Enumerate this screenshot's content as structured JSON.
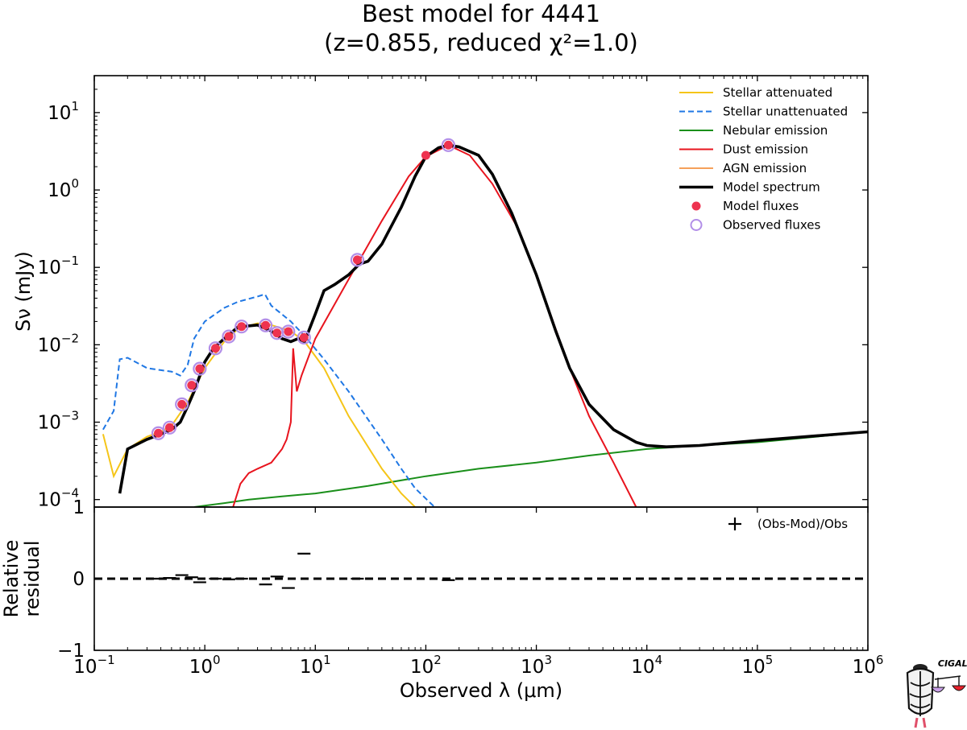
{
  "chart_data": [
    {
      "panel": "sed",
      "type": "line",
      "title": "Best model for 4441",
      "subtitle": "(z=0.855, reduced χ²=1.0)",
      "xlabel": "Observed λ (μm)",
      "ylabel": "Sν (mJy)",
      "xscale": "log",
      "yscale": "log",
      "xlim": [
        0.1,
        1000000
      ],
      "ylim": [
        8e-05,
        30
      ],
      "x_ticks": [
        0.1,
        1,
        10,
        100,
        1000,
        10000,
        100000,
        1000000
      ],
      "x_tick_labels": [
        {
          "base": "10",
          "exp": "−1"
        },
        {
          "base": "10",
          "exp": "0"
        },
        {
          "base": "10",
          "exp": "1"
        },
        {
          "base": "10",
          "exp": "2"
        },
        {
          "base": "10",
          "exp": "3"
        },
        {
          "base": "10",
          "exp": "4"
        },
        {
          "base": "10",
          "exp": "5"
        },
        {
          "base": "10",
          "exp": "6"
        }
      ],
      "y_ticks": [
        0.0001,
        0.001,
        0.01,
        0.1,
        1,
        10
      ],
      "y_tick_labels": [
        {
          "base": "10",
          "exp": "−4"
        },
        {
          "base": "10",
          "exp": "−3"
        },
        {
          "base": "10",
          "exp": "−2"
        },
        {
          "base": "10",
          "exp": "−1"
        },
        {
          "base": "10",
          "exp": "0"
        },
        {
          "base": "10",
          "exp": "1"
        }
      ],
      "legend_position": "top-right",
      "legend": [
        {
          "label": "Stellar attenuated",
          "color": "#f5c518",
          "style": "line"
        },
        {
          "label": "Stellar unattenuated",
          "color": "#1f77e4",
          "style": "dashed"
        },
        {
          "label": "Nebular emission",
          "color": "#1a8f1a",
          "style": "line"
        },
        {
          "label": "Dust emission",
          "color": "#e8141e",
          "style": "line"
        },
        {
          "label": "AGN emission",
          "color": "#f5a05a",
          "style": "line"
        },
        {
          "label": "Model spectrum",
          "color": "#000000",
          "style": "thick"
        },
        {
          "label": "Model fluxes",
          "color": "#ee3350",
          "style": "dot"
        },
        {
          "label": "Observed fluxes",
          "color": "#b28ee8",
          "style": "circle"
        }
      ],
      "series": [
        {
          "name": "Stellar attenuated",
          "color": "#f5c518",
          "x": [
            0.12,
            0.15,
            0.2,
            0.3,
            0.4,
            0.5,
            0.7,
            1.0,
            1.5,
            2.0,
            3.0,
            4.0,
            6.0,
            8.0,
            12,
            20,
            40,
            60,
            80
          ],
          "y": [
            0.0007,
            0.0002,
            0.00045,
            0.00065,
            0.00075,
            0.0009,
            0.0018,
            0.005,
            0.011,
            0.016,
            0.019,
            0.018,
            0.015,
            0.011,
            0.005,
            0.0012,
            0.00025,
            0.00012,
            8e-05
          ]
        },
        {
          "name": "Stellar unattenuated",
          "color": "#1f77e4",
          "x": [
            0.12,
            0.15,
            0.17,
            0.2,
            0.3,
            0.4,
            0.5,
            0.6,
            0.7,
            0.8,
            1.0,
            1.5,
            2.0,
            3.0,
            3.5,
            4.0,
            6.0,
            8.0,
            12,
            20,
            40,
            60,
            80,
            120
          ],
          "y": [
            0.0008,
            0.0014,
            0.0065,
            0.0068,
            0.005,
            0.0047,
            0.0045,
            0.004,
            0.0055,
            0.012,
            0.02,
            0.03,
            0.036,
            0.042,
            0.045,
            0.032,
            0.02,
            0.013,
            0.0065,
            0.0025,
            0.0006,
            0.00025,
            0.00014,
            8e-05
          ]
        },
        {
          "name": "Nebular emission",
          "color": "#1a8f1a",
          "x": [
            0.8,
            1.5,
            2.5,
            5,
            10,
            30,
            100,
            300,
            1000,
            3000,
            10000,
            30000,
            100000,
            1000000
          ],
          "y": [
            8e-05,
            9e-05,
            0.0001,
            0.00011,
            0.00012,
            0.00015,
            0.0002,
            0.00025,
            0.0003,
            0.00037,
            0.00045,
            0.0005,
            0.00055,
            0.00075
          ]
        },
        {
          "name": "Dust emission",
          "color": "#e8141e",
          "x": [
            1.8,
            2.1,
            2.5,
            3.0,
            4.0,
            5.0,
            5.5,
            6.0,
            6.3,
            6.8,
            7.5,
            10,
            20,
            40,
            70,
            100,
            160,
            250,
            400,
            700,
            1000,
            2000,
            3000,
            5000,
            8000
          ],
          "y": [
            8e-05,
            0.00016,
            0.00022,
            0.00025,
            0.0003,
            0.00045,
            0.0006,
            0.001,
            0.009,
            0.0025,
            0.004,
            0.012,
            0.07,
            0.4,
            1.5,
            2.7,
            3.8,
            2.8,
            1.2,
            0.3,
            0.08,
            0.005,
            0.0012,
            0.0003,
            8e-05
          ]
        },
        {
          "name": "Model spectrum",
          "color": "#000000",
          "x": [
            0.17,
            0.2,
            0.3,
            0.4,
            0.5,
            0.6,
            0.7,
            0.8,
            1.0,
            1.2,
            1.5,
            2.0,
            3.0,
            4.0,
            5.0,
            6.0,
            7.0,
            8.0,
            10,
            12,
            15,
            20,
            25,
            30,
            40,
            60,
            80,
            100,
            130,
            160,
            200,
            300,
            400,
            600,
            1000,
            1500,
            2000,
            3000,
            5000,
            8000,
            10000,
            15000,
            30000,
            100000,
            1000000
          ],
          "y": [
            0.00012,
            0.00045,
            0.0006,
            0.0007,
            0.0008,
            0.001,
            0.0016,
            0.0025,
            0.006,
            0.009,
            0.012,
            0.017,
            0.018,
            0.015,
            0.012,
            0.011,
            0.012,
            0.011,
            0.025,
            0.05,
            0.06,
            0.08,
            0.11,
            0.12,
            0.2,
            0.6,
            1.5,
            2.7,
            3.5,
            3.8,
            3.6,
            2.8,
            1.6,
            0.5,
            0.08,
            0.015,
            0.005,
            0.0017,
            0.0008,
            0.00055,
            0.0005,
            0.00048,
            0.0005,
            0.00058,
            0.00075
          ]
        }
      ],
      "model_fluxes": {
        "x": [
          0.38,
          0.48,
          0.62,
          0.76,
          0.9,
          1.25,
          1.65,
          2.15,
          3.55,
          4.5,
          5.7,
          7.9,
          24,
          100,
          160
        ],
        "y": [
          0.00072,
          0.00085,
          0.0017,
          0.003,
          0.0049,
          0.009,
          0.0128,
          0.0172,
          0.0178,
          0.0142,
          0.0148,
          0.0124,
          0.125,
          2.8,
          3.8
        ]
      },
      "observed_fluxes": {
        "x": [
          0.38,
          0.48,
          0.62,
          0.76,
          0.9,
          1.25,
          1.65,
          2.15,
          3.55,
          4.5,
          5.7,
          7.9,
          24,
          160
        ],
        "y": [
          0.00072,
          0.00085,
          0.0017,
          0.003,
          0.0049,
          0.009,
          0.0128,
          0.0172,
          0.0178,
          0.0142,
          0.0148,
          0.0124,
          0.125,
          3.8
        ]
      }
    },
    {
      "panel": "residual",
      "type": "scatter",
      "ylabel_lines": [
        "Relative",
        "residual"
      ],
      "xscale": "log",
      "xlim": [
        0.1,
        1000000
      ],
      "ylim": [
        -1,
        1
      ],
      "y_ticks": [
        -1,
        0,
        1
      ],
      "y_tick_labels": [
        "−1",
        "0",
        "1"
      ],
      "legend_position": "top-right",
      "legend": [
        {
          "label": "(Obs-Mod)/Obs",
          "marker": "plus"
        }
      ],
      "points": {
        "x": [
          0.38,
          0.48,
          0.62,
          0.76,
          0.9,
          1.25,
          1.65,
          2.15,
          3.55,
          4.5,
          5.7,
          7.9,
          24,
          160
        ],
        "y": [
          0.0,
          0.01,
          0.05,
          0.02,
          -0.05,
          0.0,
          -0.01,
          0.0,
          -0.08,
          0.03,
          -0.13,
          0.35,
          0.0,
          -0.02
        ]
      },
      "zero_line": 0
    }
  ],
  "logo": {
    "text": "CIGALE"
  }
}
